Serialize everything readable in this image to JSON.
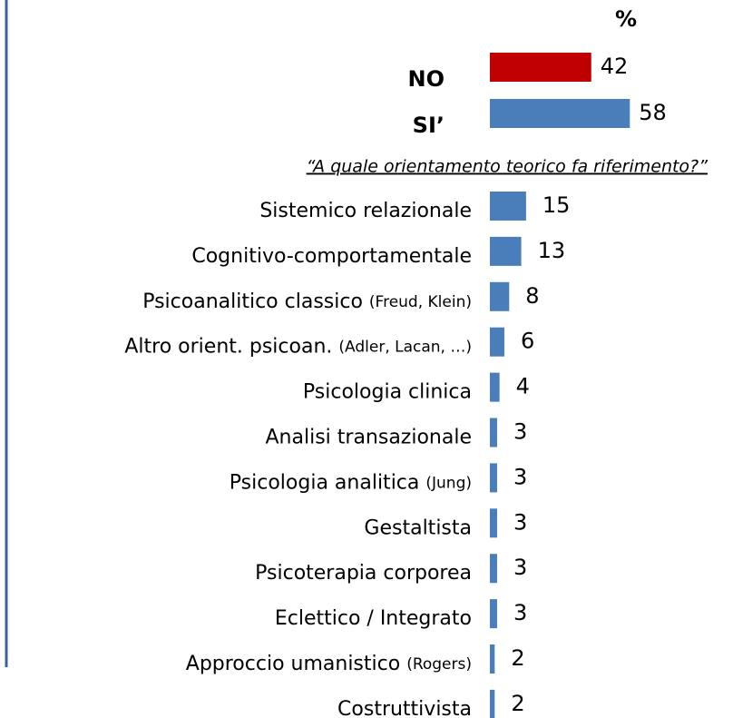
{
  "chart_data": [
    {
      "type": "bar",
      "orientation": "horizontal",
      "title": "%",
      "categories": [
        "NO",
        "SI’"
      ],
      "values": [
        42,
        58
      ],
      "colors": [
        "#c00000",
        "#4a7ebb"
      ]
    },
    {
      "type": "bar",
      "orientation": "horizontal",
      "subtitle": "“A quale orientamento teorico fa riferimento?”",
      "categories": [
        "Sistemico relazionale",
        "Cognitivo-comportamentale",
        "Psicoanalitico classico (Freud, Klein)",
        "Altro orient. psicoan. (Adler, Lacan, …)",
        "Psicologia clinica",
        "Analisi transazionale",
        "Psicologia analitica (Jung)",
        "Gestaltista",
        "Psicoterapia corporea",
        "Eclettico / Integrato",
        "Approccio umanistico (Rogers)",
        "Costruttivista"
      ],
      "values": [
        15,
        13,
        8,
        6,
        4,
        3,
        3,
        3,
        3,
        3,
        2,
        2
      ],
      "color": "#4a7ebb"
    }
  ]
}
